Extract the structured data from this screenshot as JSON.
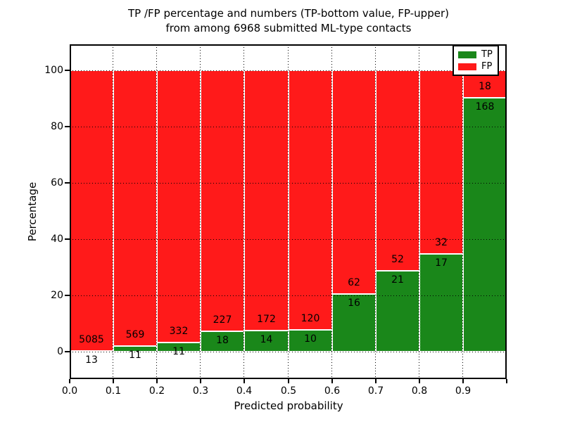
{
  "title": {
    "line1": "TP /FP percentage and numbers (TP-bottom value, FP-upper)",
    "line2": "from among 6968 submitted ML-type contacts"
  },
  "axes": {
    "xlabel": "Predicted probability",
    "ylabel": "Percentage",
    "x_tick_labels": [
      "0.0",
      "0.1",
      "0.2",
      "0.3",
      "0.4",
      "0.5",
      "0.6",
      "0.7",
      "0.8",
      "0.9"
    ],
    "y_tick_labels": [
      "0",
      "20",
      "40",
      "60",
      "80",
      "100"
    ],
    "y_tick_values": [
      0,
      20,
      40,
      60,
      80,
      100
    ],
    "xlim": [
      0.0,
      1.0
    ],
    "ylim": [
      -9.75,
      109.5
    ],
    "grid": "dotted"
  },
  "legend": {
    "position": "upper right",
    "items": [
      {
        "label": "TP",
        "color": "#1a871a"
      },
      {
        "label": "FP",
        "color": "#ff1a1a"
      }
    ]
  },
  "chart_data": {
    "type": "bar",
    "subtype": "stacked-100-percent",
    "title": "TP /FP percentage and numbers (TP-bottom value, FP-upper) from among 6968 submitted ML-type contacts",
    "xlabel": "Predicted probability",
    "ylabel": "Percentage",
    "total_contacts": 6968,
    "bin_edges": [
      0.0,
      0.1,
      0.2,
      0.3,
      0.4,
      0.5,
      0.6,
      0.7,
      0.8,
      0.9,
      1.0
    ],
    "categories": [
      "0.0-0.1",
      "0.1-0.2",
      "0.2-0.3",
      "0.3-0.4",
      "0.4-0.5",
      "0.5-0.6",
      "0.6-0.7",
      "0.7-0.8",
      "0.8-0.9",
      "0.9-1.0"
    ],
    "series": [
      {
        "name": "TP",
        "color": "#1a871a",
        "counts": [
          13,
          11,
          11,
          18,
          14,
          10,
          16,
          21,
          17,
          168
        ]
      },
      {
        "name": "FP",
        "color": "#ff1a1a",
        "counts": [
          5085,
          569,
          332,
          227,
          172,
          120,
          62,
          52,
          32,
          18
        ]
      }
    ],
    "tp_percent": [
      0.26,
      1.9,
      3.21,
      7.35,
      7.53,
      7.69,
      20.51,
      28.77,
      34.69,
      90.32
    ],
    "fp_percent": [
      99.74,
      98.1,
      96.79,
      92.65,
      92.47,
      92.31,
      79.49,
      71.23,
      65.31,
      9.68
    ],
    "label_note": "TP count printed below segment boundary, FP count printed above it"
  }
}
